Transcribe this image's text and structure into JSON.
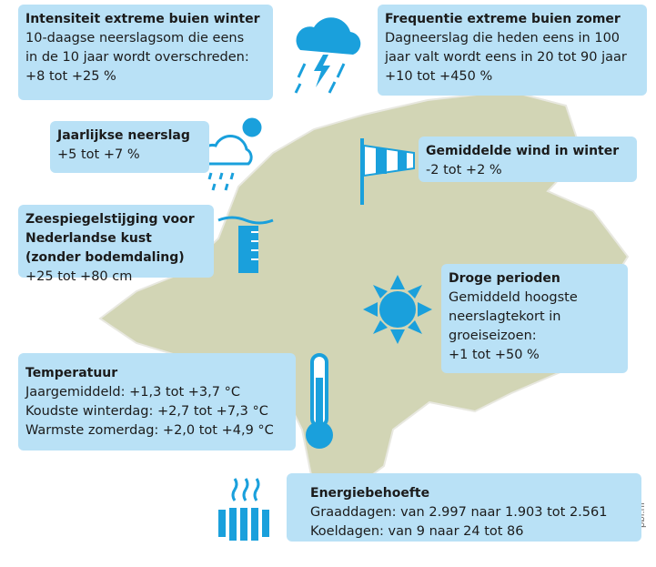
{
  "panels": [
    {
      "title": [
        "Intensiteit extreme buien winter"
      ],
      "lines": [
        "10-daagse neerslagsom die eens",
        "in de 10 jaar wordt overschreden:",
        "+8 tot +25 %"
      ]
    },
    {
      "title": [
        "Frequentie extreme buien zomer"
      ],
      "lines": [
        "Dagneerslag die heden eens in 100",
        "jaar valt wordt eens in 20 tot 90 jaar",
        "+10 tot +450 %"
      ]
    },
    {
      "title": [
        "Jaarlijkse neerslag"
      ],
      "lines": [
        "+5 tot +7 %"
      ]
    },
    {
      "title": [
        "Gemiddelde wind in winter"
      ],
      "lines": [
        "-2 tot +2 %"
      ]
    },
    {
      "title": [
        "Zeespiegelstijging voor",
        "Nederlandse kust",
        "(zonder bodemdaling)"
      ],
      "lines": [
        "+25 tot +80 cm"
      ]
    },
    {
      "title": [
        "Droge perioden"
      ],
      "lines": [
        "Gemiddeld hoogste",
        "neerslagtekort in",
        "groeiseizoen:",
        "+1 tot +50 %"
      ]
    },
    {
      "title": [
        "Temperatuur"
      ],
      "lines": [
        "Jaargemiddeld: +1,3 tot +3,7 °C",
        "Koudste winterdag: +2,7 tot +7,3 °C",
        "Warmste zomerdag: +2,0 tot +4,9 °C"
      ]
    },
    {
      "title": [
        "Energiebehoefte"
      ],
      "lines": [
        "Graaddagen: van 2.997 naar 1.903 tot 2.561",
        "Koeldagen: van 9 naar 24 tot 86"
      ]
    }
  ],
  "credit": "pbl.nl"
}
